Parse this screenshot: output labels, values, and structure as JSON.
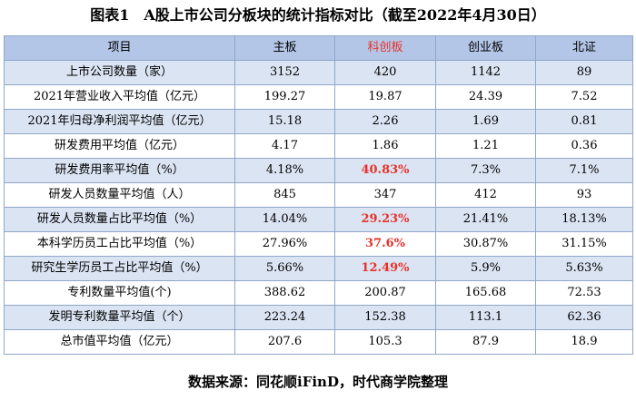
{
  "title": "图表1　A股上市公司分板块的统计指标对比（截至2022年4月30日）",
  "source": "数据来源：同花顺iFinD，时代商学院整理",
  "colors": {
    "header_bg": "#b4c6e7",
    "stripe_bg": "#dbe4f3",
    "highlight": "#e8322a"
  },
  "table": {
    "headers": [
      "项目",
      "主板",
      "科创板",
      "创业板",
      "北证"
    ],
    "rows": [
      {
        "label": "上市公司数量（家）",
        "values": [
          "3152",
          "420",
          "1142",
          "89"
        ]
      },
      {
        "label": "2021年营业收入平均值（亿元）",
        "values": [
          "199.27",
          "19.87",
          "24.39",
          "7.52"
        ]
      },
      {
        "label": "2021年归母净利润平均值（亿元）",
        "values": [
          "15.18",
          "2.26",
          "1.69",
          "0.81"
        ]
      },
      {
        "label": "研发费用平均值（亿元）",
        "values": [
          "4.17",
          "1.86",
          "1.21",
          "0.36"
        ]
      },
      {
        "label": "研发费用率平均值（%）",
        "values": [
          "4.18%",
          "40.83%",
          "7.3%",
          "7.1%"
        ]
      },
      {
        "label": "研发人员数量平均值（人）",
        "values": [
          "845",
          "347",
          "412",
          "93"
        ]
      },
      {
        "label": "研发人员数量占比平均值（%）",
        "values": [
          "14.04%",
          "29.23%",
          "21.41%",
          "18.13%"
        ]
      },
      {
        "label": "本科学历员工占比平均值（%）",
        "values": [
          "27.96%",
          "37.6%",
          "30.87%",
          "31.15%"
        ]
      },
      {
        "label": "研究生学历员工占比平均值（%）",
        "values": [
          "5.66%",
          "12.49%",
          "5.9%",
          "5.63%"
        ]
      },
      {
        "label": "专利数量平均值(个)",
        "values": [
          "388.62",
          "200.87",
          "165.68",
          "72.53"
        ]
      },
      {
        "label": "发明专利数量平均值（个）",
        "values": [
          "223.24",
          "152.38",
          "113.1",
          "62.36"
        ]
      },
      {
        "label": "总市值平均值（亿元）",
        "values": [
          "207.6",
          "105.3",
          "87.9",
          "18.9"
        ]
      }
    ]
  }
}
